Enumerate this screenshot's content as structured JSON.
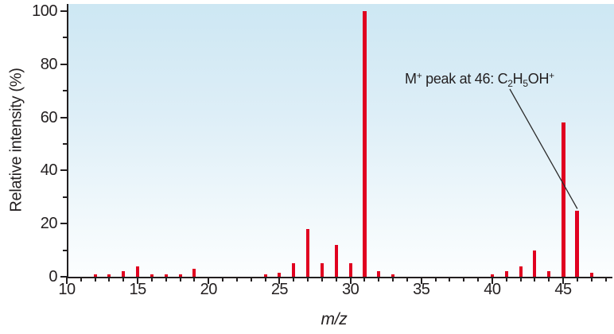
{
  "figure": {
    "type_label": "mass-spectrum",
    "background_top_color": "#cde7f3",
    "background_bottom_color": "#fcfeff",
    "axis_color": "#231f20",
    "bar_color": "#e00020"
  },
  "chart_data": {
    "type": "bar",
    "title": "",
    "xlabel": "m/z",
    "ylabel": "Relative intensity (%)",
    "xlim": [
      10,
      48.5
    ],
    "ylim": [
      0,
      100
    ],
    "grid": false,
    "legend": "none",
    "x_major_ticks": [
      10,
      15,
      20,
      25,
      30,
      35,
      40,
      45
    ],
    "x_minor_tick_step": 1,
    "x_minor_tick_range": [
      10,
      48
    ],
    "y_major_ticks": [
      0,
      20,
      40,
      60,
      80,
      100
    ],
    "y_minor_ticks": [
      10,
      30,
      50,
      70,
      90
    ],
    "x": [
      12,
      13,
      14,
      15,
      16,
      17,
      18,
      19,
      24,
      25,
      26,
      27,
      28,
      29,
      30,
      31,
      32,
      33,
      40,
      41,
      42,
      43,
      44,
      45,
      46,
      47
    ],
    "values": [
      1,
      1,
      2,
      4,
      1,
      1,
      1,
      3,
      1,
      1.5,
      5,
      18,
      5,
      12,
      5,
      100,
      2,
      1,
      1,
      2,
      4,
      10,
      2,
      58,
      25,
      1.5
    ],
    "bar_color": "#e00020",
    "annotation": {
      "plain_text": "M+ peak at 46: C2H5OH+",
      "segments": [
        {
          "t": "M"
        },
        {
          "t": "+",
          "style": "sup"
        },
        {
          "t": " peak at 46: C"
        },
        {
          "t": "2",
          "style": "sub"
        },
        {
          "t": "H"
        },
        {
          "t": "5",
          "style": "sub"
        },
        {
          "t": "OH"
        },
        {
          "t": "+",
          "style": "sup"
        }
      ],
      "target_mz": 46,
      "target_intensity": 25
    }
  }
}
